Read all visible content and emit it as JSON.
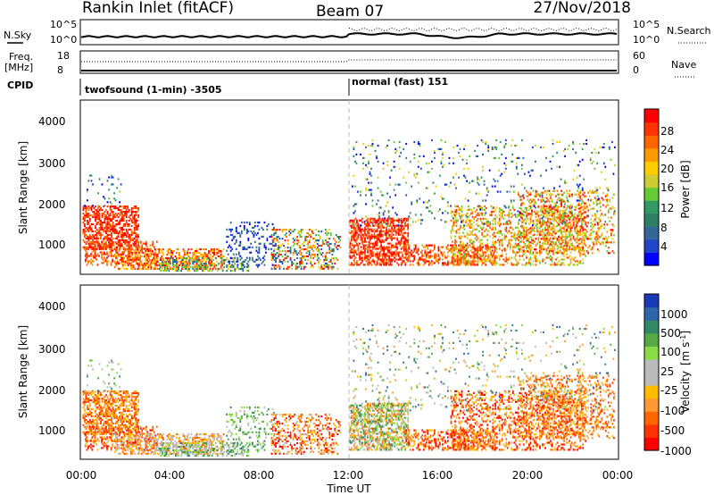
{
  "header": {
    "station": "Rankin Inlet (fitACF)",
    "beam": "Beam 07",
    "date": "27/Nov/2018"
  },
  "summary_panels": {
    "noise_left_label": "N.Sky",
    "noise_right_label": "N.Search",
    "noise_left_ticks": [
      "10^5",
      "10^0"
    ],
    "noise_right_ticks": [
      "10^5",
      "10^0"
    ],
    "freq_label_line1": "Freq.",
    "freq_label_line2": "[MHz]",
    "freq_ticks": [
      "18",
      "8"
    ],
    "nave_label": "Nave",
    "nave_ticks": [
      "60",
      "0"
    ],
    "cpid_label": "CPID",
    "cpid_segments": [
      {
        "label": "twofsound (1-min) -3505",
        "start_hour": 0
      },
      {
        "label": "normal (fast) 151",
        "start_hour": 12
      }
    ]
  },
  "chart_data": [
    {
      "type": "heatmap",
      "name": "power",
      "ylabel": "Slant Range [km]",
      "yticks": [
        "4000",
        "3000",
        "2000",
        "1000"
      ],
      "ylim": [
        180,
        4600
      ],
      "xlim_hours": [
        0,
        24
      ],
      "colorbar_label": "Power [dB]",
      "colorbar_ticks": [
        "28",
        "24",
        "20",
        "16",
        "12",
        "8",
        "4"
      ],
      "colorbar_colors": [
        "#ff0000",
        "#ff3300",
        "#ff6600",
        "#ff9900",
        "#ffcc00",
        "#cccc33",
        "#66cc33",
        "#339966",
        "#2f7f66",
        "#336699",
        "#1f45c8",
        "#0000ff"
      ]
    },
    {
      "type": "heatmap",
      "name": "velocity",
      "ylabel": "Slant Range [km]",
      "yticks": [
        "4000",
        "3000",
        "2000",
        "1000"
      ],
      "ylim": [
        180,
        4600
      ],
      "xlim_hours": [
        0,
        24
      ],
      "colorbar_label": "Velocity",
      "colorbar_unit": "[m s",
      "colorbar_unit_sup": "-1",
      "colorbar_unit_end": "]",
      "colorbar_ticks": [
        "1000",
        "500",
        "100",
        "25",
        "-25",
        "-100",
        "-500",
        "-1000"
      ],
      "colorbar_colors": [
        "#1a3ab8",
        "#2f66aa",
        "#338866",
        "#55aa44",
        "#88dd44",
        "#bbbbbb",
        "#bbbbbb",
        "#ffbb00",
        "#ff9933",
        "#ff6600",
        "#ff3300",
        "#ff0000"
      ]
    }
  ],
  "xaxis": {
    "ticks": [
      "00:00",
      "04:00",
      "08:00",
      "12:00",
      "16:00",
      "20:00",
      "00:00"
    ],
    "label": "Time UT"
  }
}
